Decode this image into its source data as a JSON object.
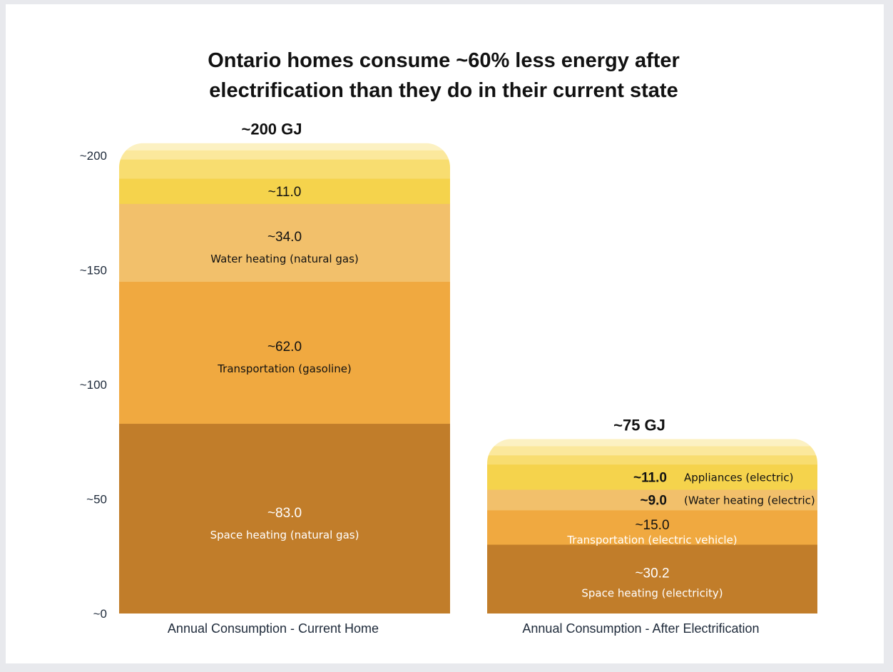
{
  "chart_data": {
    "type": "bar",
    "stacked": true,
    "title": "Ontario homes consume ~60% less energy after electrification than they do in their current state",
    "title_lines": [
      "Ontario homes consume ~60% less energy after",
      "electrification than they do in their current state"
    ],
    "ylim": [
      0,
      200
    ],
    "y_ticks": [
      0,
      50,
      100,
      150,
      200
    ],
    "y_tick_labels": [
      "~0",
      "~50",
      "~100",
      "~150",
      "~200"
    ],
    "grid": false,
    "categories": [
      "Annual Consumption - Current Home",
      "Annual Consumption - After Electrification"
    ],
    "totals": [
      "~200 GJ",
      "~75 GJ"
    ],
    "bars": [
      {
        "category": "Annual Consumption - Current Home",
        "segments": [
          {
            "value": 83.0,
            "value_label": "~83.0",
            "label": "Space heating (natural gas)",
            "color": "#c17d2a"
          },
          {
            "value": 62.0,
            "value_label": "~62.0",
            "label": "Transportation (gasoline)",
            "color": "#f0a940"
          },
          {
            "value": 34.0,
            "value_label": "~34.0",
            "label": "Water heating (natural gas)",
            "color": "#f2c06b"
          },
          {
            "value": 11.0,
            "value_label": "~11.0",
            "label": "",
            "color": "#f5d34c"
          },
          {
            "value": 8.4,
            "value_label": "",
            "label": "",
            "color": "#f8dd70"
          },
          {
            "value": 4.0,
            "value_label": "",
            "label": "",
            "color": "#fbe89c"
          },
          {
            "value": 3.0,
            "value_label": "",
            "label": "",
            "color": "#fcf1c2"
          }
        ]
      },
      {
        "category": "Annual Consumption - After Electrification",
        "segments": [
          {
            "value": 30.2,
            "value_label": "~30.2",
            "label": "Space heating (electricity)",
            "color": "#c17d2a"
          },
          {
            "value": 15.0,
            "value_label": "~15.0",
            "label": "Transportation (electric vehicle)",
            "color": "#f0a940"
          },
          {
            "value": 9.0,
            "value_label": "~9.0",
            "label": "(Water heating (electric)",
            "color": "#f2c06b"
          },
          {
            "value": 11.0,
            "value_label": "~11.0",
            "label": "Appliances (electric)",
            "color": "#f5d34c"
          },
          {
            "value": 4.0,
            "value_label": "",
            "label": "",
            "color": "#f8dd70"
          },
          {
            "value": 4.0,
            "value_label": "",
            "label": "",
            "color": "#fbe89c"
          },
          {
            "value": 3.0,
            "value_label": "",
            "label": "",
            "color": "#fcf1c2"
          }
        ]
      }
    ]
  }
}
